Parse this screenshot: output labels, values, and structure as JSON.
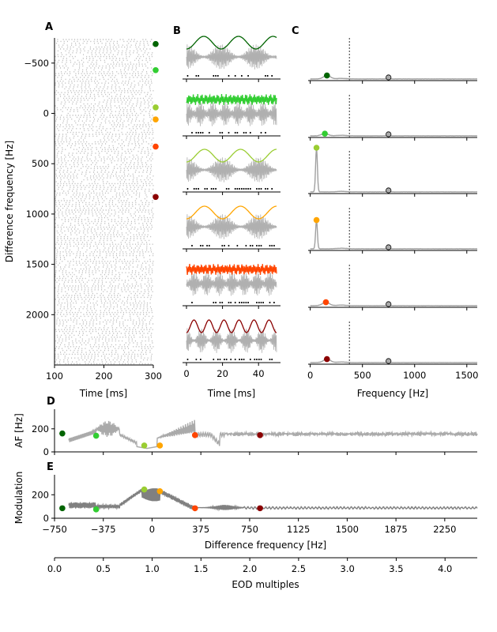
{
  "colors": {
    "grey": "#aaaaaa",
    "dark_grey": "#808080",
    "markers": [
      "#006400",
      "#32cd32",
      "#9acd32",
      "#ffa500",
      "#ff4500",
      "#8b0000"
    ]
  },
  "chart_data": [
    {
      "panel": "A",
      "type": "scatter",
      "xlabel": "Time [ms]",
      "ylabel": "Difference frequency [Hz]",
      "xlim": [
        100,
        300
      ],
      "ylim": [
        2500,
        -750
      ],
      "xticks": [
        100,
        200,
        300
      ],
      "yticks": [
        -500,
        0,
        500,
        1000,
        1500,
        2000
      ],
      "marker_dfs": [
        -690,
        -430,
        -60,
        60,
        330,
        830
      ]
    },
    {
      "panel": "B",
      "type": "line",
      "xlabel": "Time [ms]",
      "xlim": [
        0,
        50
      ],
      "xticks": [
        0,
        20,
        40
      ],
      "rows": [
        {
          "df": -690,
          "beat_periods": 2.6,
          "irregular": false
        },
        {
          "df": -430,
          "beat_periods": 12,
          "irregular": true
        },
        {
          "df": -60,
          "beat_periods": 2.5,
          "irregular": false
        },
        {
          "df": 60,
          "beat_periods": 2.5,
          "irregular": false
        },
        {
          "df": 330,
          "beat_periods": 12,
          "irregular": true
        },
        {
          "df": 830,
          "beat_periods": 6,
          "irregular": false
        }
      ]
    },
    {
      "panel": "C",
      "type": "line",
      "xlabel": "Frequency [Hz]",
      "xlim": [
        -20,
        1600
      ],
      "xticks": [
        0,
        500,
        1000,
        1500
      ],
      "dashed_line_x": 375,
      "eod_peak_x": 750,
      "rows": [
        {
          "peak_x": 160,
          "peak_h": 0.08
        },
        {
          "peak_x": 140,
          "peak_h": 0.05
        },
        {
          "peak_x": 60,
          "peak_h": 1.0
        },
        {
          "peak_x": 60,
          "peak_h": 0.65
        },
        {
          "peak_x": 150,
          "peak_h": 0.08
        },
        {
          "peak_x": 160,
          "peak_h": 0.08
        }
      ]
    },
    {
      "panel": "D",
      "type": "line",
      "ylabel": "AF [Hz]",
      "xlim": [
        -750,
        2500
      ],
      "ylim": [
        0,
        370
      ],
      "yticks": [
        0,
        200
      ],
      "points": [
        [
          -690,
          160
        ],
        [
          -430,
          140
        ],
        [
          -60,
          55
        ],
        [
          60,
          55
        ],
        [
          330,
          145
        ],
        [
          830,
          145
        ]
      ],
      "segments": [
        {
          "x0": -620,
          "x1": -430,
          "kind": "ramp_up",
          "y0": 100,
          "y1": 195
        },
        {
          "x0": -430,
          "x1": -250,
          "kind": "oscillating_peak",
          "y_mid": 210,
          "amp": 110
        },
        {
          "x0": -250,
          "x1": -100,
          "kind": "ramp_down",
          "y0": 120,
          "y1": 60
        },
        {
          "x0": -100,
          "x1": 60,
          "kind": "dip",
          "y_min": 10
        },
        {
          "x0": 60,
          "x1": 330,
          "kind": "oscillating_rise",
          "y_mid": 170,
          "amp": 80
        },
        {
          "x0": 330,
          "x1": 2500,
          "kind": "noisy_flat",
          "y_mid": 155,
          "amp": 18
        }
      ]
    },
    {
      "panel": "E",
      "type": "line",
      "ylabel": "Modulation",
      "xlabel": "Difference frequency [Hz]",
      "xlim": [
        -750,
        2500
      ],
      "ylim": [
        0,
        370
      ],
      "yticks": [
        0,
        200
      ],
      "xticks": [
        -750,
        -375,
        0,
        375,
        750,
        1125,
        1500,
        1875,
        2250
      ],
      "points": [
        [
          -690,
          85
        ],
        [
          -430,
          75
        ],
        [
          -60,
          245
        ],
        [
          60,
          230
        ],
        [
          330,
          85
        ],
        [
          830,
          85
        ]
      ],
      "second_axis": {
        "xlabel": "EOD multiples",
        "xlim": [
          0,
          4.33
        ],
        "xticks": [
          "0.0",
          "0.5",
          "1.0",
          "1.5",
          "2.0",
          "2.5",
          "3.0",
          "3.5",
          "4.0"
        ]
      }
    }
  ]
}
